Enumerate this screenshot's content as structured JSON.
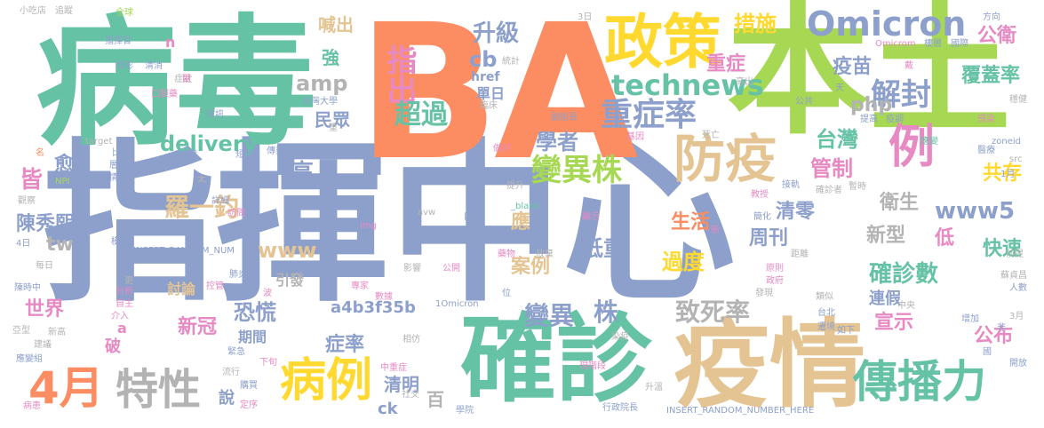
{
  "title": "",
  "palette": {
    "teal": "#66c2a5",
    "orange": "#fc8d62",
    "blue": "#8da0cb",
    "pink": "#e78ac3",
    "green": "#a6d854",
    "yellow": "#ffd92f",
    "tan": "#e5c494",
    "gray": "#b3b3b3"
  },
  "words": [
    {
      "text": "指揮中心",
      "color": "#8da0cb"
    },
    {
      "text": "BA",
      "color": "#fc8d62"
    },
    {
      "text": "病毒",
      "color": "#66c2a5"
    },
    {
      "text": "本土",
      "color": "#a6d854"
    },
    {
      "text": "確診",
      "color": "#66c2a5"
    },
    {
      "text": "疫情",
      "color": "#e5c494"
    },
    {
      "text": "政策",
      "color": "#ffd92f"
    },
    {
      "text": "Omicron",
      "color": "#8da0cb"
    },
    {
      "text": "防疫",
      "color": "#e5c494"
    },
    {
      "text": "傳播力",
      "color": "#66c2a5"
    },
    {
      "text": "病例",
      "color": "#ffd92f"
    },
    {
      "text": "特性",
      "color": "#b3b3b3"
    },
    {
      "text": "4月",
      "color": "#fc8d62"
    },
    {
      "text": "例",
      "color": "#e78ac3"
    },
    {
      "text": "technews",
      "color": "#66c2a5"
    },
    {
      "text": "重症率",
      "color": "#8da0cb"
    },
    {
      "text": "變異株",
      "color": "#a6d854"
    },
    {
      "text": "解封",
      "color": "#8da0cb"
    },
    {
      "text": "指出",
      "color": "#e78ac3"
    },
    {
      "text": "升級",
      "color": "#8da0cb"
    },
    {
      "text": "超過",
      "color": "#66c2a5"
    },
    {
      "text": "cb",
      "color": "#8da0cb"
    },
    {
      "text": "href",
      "color": "#8da0cb"
    },
    {
      "text": "單日",
      "color": "#8da0cb"
    },
    {
      "text": "措施",
      "color": "#ffd92f"
    },
    {
      "text": "重症",
      "color": "#e78ac3"
    },
    {
      "text": "疫苗",
      "color": "#8da0cb"
    },
    {
      "text": "公衛",
      "color": "#e78ac3"
    },
    {
      "text": "覆蓋率",
      "color": "#66c2a5"
    },
    {
      "text": "php",
      "color": "#b3b3b3"
    },
    {
      "text": "台灣",
      "color": "#66c2a5"
    },
    {
      "text": "管制",
      "color": "#e78ac3"
    },
    {
      "text": "共存",
      "color": "#ffd92f"
    },
    {
      "text": "www5",
      "color": "#8da0cb"
    },
    {
      "text": "衛生",
      "color": "#b3b3b3"
    },
    {
      "text": "新型",
      "color": "#b3b3b3"
    },
    {
      "text": "低",
      "color": "#e78ac3"
    },
    {
      "text": "快速",
      "color": "#66c2a5"
    },
    {
      "text": "確診數",
      "color": "#66c2a5"
    },
    {
      "text": "連假",
      "color": "#8da0cb"
    },
    {
      "text": "宣示",
      "color": "#e78ac3"
    },
    {
      "text": "公布",
      "color": "#e78ac3"
    },
    {
      "text": "喊出",
      "color": "#e5c494"
    },
    {
      "text": "amp",
      "color": "#b3b3b3"
    },
    {
      "text": "強",
      "color": "#66c2a5"
    },
    {
      "text": "民眾",
      "color": "#8da0cb"
    },
    {
      "text": "delivery",
      "color": "#66c2a5"
    },
    {
      "text": "學者",
      "color": "#8da0cb"
    },
    {
      "text": "高",
      "color": "#8da0cb"
    },
    {
      "text": "羅一鈞",
      "color": "#e5c494"
    },
    {
      "text": "皆",
      "color": "#e78ac3"
    },
    {
      "text": "愈",
      "color": "#8da0cb"
    },
    {
      "text": "陳秀熙",
      "color": "#8da0cb"
    },
    {
      "text": "tw",
      "color": "#b3b3b3"
    },
    {
      "text": "www",
      "color": "#e5c494"
    },
    {
      "text": "應",
      "color": "#e5c494"
    },
    {
      "text": "案例",
      "color": "#e5c494"
    },
    {
      "text": "低重",
      "color": "#8da0cb"
    },
    {
      "text": "生活",
      "color": "#fc8d62"
    },
    {
      "text": "過度",
      "color": "#ffd92f"
    },
    {
      "text": "周刊",
      "color": "#8da0cb"
    },
    {
      "text": "清零",
      "color": "#8da0cb"
    },
    {
      "text": "恐慌",
      "color": "#8da0cb"
    },
    {
      "text": "引發",
      "color": "#b3b3b3"
    },
    {
      "text": "討論",
      "color": "#e5c494"
    },
    {
      "text": "期間",
      "color": "#8da0cb"
    },
    {
      "text": "世界",
      "color": "#e78ac3"
    },
    {
      "text": "新冠",
      "color": "#e78ac3"
    },
    {
      "text": "a4b3f35b",
      "color": "#8da0cb"
    },
    {
      "text": "變異",
      "color": "#8da0cb"
    },
    {
      "text": "株",
      "color": "#8da0cb"
    },
    {
      "text": "致死率",
      "color": "#b3b3b3"
    },
    {
      "text": "症率",
      "color": "#8da0cb"
    },
    {
      "text": "說",
      "color": "#8da0cb"
    },
    {
      "text": "清明",
      "color": "#8da0cb"
    },
    {
      "text": "百",
      "color": "#b3b3b3"
    },
    {
      "text": "ck",
      "color": "#8da0cb"
    },
    {
      "text": "破",
      "color": "#e78ac3"
    },
    {
      "text": "a",
      "color": "#e78ac3"
    },
    {
      "text": "n",
      "color": "#e78ac3"
    },
    {
      "text": "小吃店",
      "color": "#b3b3b3"
    },
    {
      "text": "追蹤",
      "color": "#b3b3b3"
    },
    {
      "text": "全球",
      "color": "#a6d854"
    },
    {
      "text": "指揮官",
      "color": "#8da0cb"
    },
    {
      "text": "情形",
      "color": "#8da0cb"
    },
    {
      "text": "清消",
      "color": "#8da0cb"
    },
    {
      "text": "症狀",
      "color": "#b3b3b3"
    },
    {
      "text": "口服藥",
      "color": "#e78ac3"
    },
    {
      "text": "資訊",
      "color": "#8da0cb"
    },
    {
      "text": "target",
      "color": "#b3b3b3"
    },
    {
      "text": "統計",
      "color": "#b3b3b3"
    },
    {
      "text": "台灣大學",
      "color": "#8da0cb"
    },
    {
      "text": "臨床",
      "color": "#b3b3b3"
    },
    {
      "text": "副組長",
      "color": "#8da0cb"
    },
    {
      "text": "基因",
      "color": "#e78ac3"
    },
    {
      "text": "3日",
      "color": "#b3b3b3"
    },
    {
      "text": "Omicrom",
      "color": "#e78ac3"
    },
    {
      "text": "國際",
      "color": "#8da0cb"
    },
    {
      "text": "方向",
      "color": "#8da0cb"
    },
    {
      "text": "天",
      "color": "#8da0cb"
    },
    {
      "text": "公共",
      "color": "#8da0cb"
    },
    {
      "text": "提高",
      "color": "#8da0cb"
    },
    {
      "text": "疫調",
      "color": "#8da0cb"
    },
    {
      "text": "感染",
      "color": "#e78ac3"
    },
    {
      "text": "穩健",
      "color": "#b3b3b3"
    },
    {
      "text": "高出",
      "color": "#b3b3b3"
    },
    {
      "text": "戴",
      "color": "#e78ac3"
    },
    {
      "text": "應變",
      "color": "#66c2a5"
    },
    {
      "text": "醫療",
      "color": "#8da0cb"
    },
    {
      "text": "zoneid",
      "color": "#8da0cb"
    },
    {
      "text": "src",
      "color": "#b3b3b3"
    },
    {
      "text": "死亡",
      "color": "#b3b3b3"
    },
    {
      "text": "做好",
      "color": "#e78ac3"
    },
    {
      "text": "比率",
      "color": "#8da0cb"
    },
    {
      "text": "層級",
      "color": "#8da0cb"
    },
    {
      "text": "情況",
      "color": "#8da0cb"
    },
    {
      "text": "組織",
      "color": "#8da0cb"
    },
    {
      "text": "短短",
      "color": "#8da0cb"
    },
    {
      "text": "傳染力",
      "color": "#8da0cb"
    },
    {
      "text": "NPI",
      "color": "#a6d854"
    },
    {
      "text": "觀察",
      "color": "#b3b3b3"
    },
    {
      "text": "詳細",
      "color": "#8da0cb"
    },
    {
      "text": "訪問",
      "color": "#e78ac3"
    },
    {
      "text": "基於",
      "color": "#8da0cb"
    },
    {
      "text": "提升",
      "color": "#b3b3b3"
    },
    {
      "text": "_blank",
      "color": "#66c2a5"
    },
    {
      "text": "接軌",
      "color": "#8da0cb"
    },
    {
      "text": "確診者",
      "color": "#b3b3b3"
    },
    {
      "text": "暫時",
      "color": "#b3b3b3"
    },
    {
      "text": "教授",
      "color": "#e78ac3"
    },
    {
      "text": "1月",
      "color": "#8da0cb"
    },
    {
      "text": "名",
      "color": "#fc8d62"
    },
    {
      "text": "4日",
      "color": "#8da0cb"
    },
    {
      "text": "每日",
      "color": "#b3b3b3"
    },
    {
      "text": "模式",
      "color": "#8da0cb"
    },
    {
      "text": "INSERT_RANDOM_NUM",
      "color": "#8da0cb"
    },
    {
      "text": "img",
      "color": "#e78ac3"
    },
    {
      "text": "avw",
      "color": "#b3b3b3"
    },
    {
      "text": "口罩",
      "color": "#8da0cb"
    },
    {
      "text": "顯示",
      "color": "#e78ac3"
    },
    {
      "text": "簡化",
      "color": "#8da0cb"
    },
    {
      "text": "距離",
      "color": "#b3b3b3"
    },
    {
      "text": "前提",
      "color": "#b3b3b3"
    },
    {
      "text": "更",
      "color": "#b3b3b3"
    },
    {
      "text": "分析",
      "color": "#e78ac3"
    },
    {
      "text": "肺炎",
      "color": "#8da0cb"
    },
    {
      "text": "影響",
      "color": "#b3b3b3"
    },
    {
      "text": "公開",
      "color": "#e78ac3"
    },
    {
      "text": "藥物",
      "color": "#e78ac3"
    },
    {
      "text": "放棄",
      "color": "#b3b3b3"
    },
    {
      "text": "原則",
      "color": "#e78ac3"
    },
    {
      "text": "政府",
      "color": "#e78ac3"
    },
    {
      "text": "蘇貞昌",
      "color": "#b3b3b3"
    },
    {
      "text": "人數",
      "color": "#8da0cb"
    },
    {
      "text": "陳時中",
      "color": "#8da0cb"
    },
    {
      "text": "自主",
      "color": "#e78ac3"
    },
    {
      "text": "介入",
      "color": "#e78ac3"
    },
    {
      "text": "控管",
      "color": "#e78ac3"
    },
    {
      "text": "波",
      "color": "#e78ac3"
    },
    {
      "text": "專家",
      "color": "#e78ac3"
    },
    {
      "text": "數據",
      "color": "#e78ac3"
    },
    {
      "text": "1Omicron",
      "color": "#8da0cb"
    },
    {
      "text": "位",
      "color": "#8da0cb"
    },
    {
      "text": "發現",
      "color": "#b3b3b3"
    },
    {
      "text": "類似",
      "color": "#b3b3b3"
    },
    {
      "text": "中央",
      "color": "#b3b3b3"
    },
    {
      "text": "台北",
      "color": "#8da0cb"
    },
    {
      "text": "亞型",
      "color": "#b3b3b3"
    },
    {
      "text": "新高",
      "color": "#b3b3b3"
    },
    {
      "text": "3月",
      "color": "#b3b3b3"
    },
    {
      "text": "增加",
      "color": "#8da0cb"
    },
    {
      "text": "遷境",
      "color": "#8da0cb"
    },
    {
      "text": "如下",
      "color": "#8da0cb"
    },
    {
      "text": "建議",
      "color": "#b3b3b3"
    },
    {
      "text": "應變組",
      "color": "#8da0cb"
    },
    {
      "text": "緊急",
      "color": "#8da0cb"
    },
    {
      "text": "相仿",
      "color": "#b3b3b3"
    },
    {
      "text": "染疫",
      "color": "#b3b3b3"
    },
    {
      "text": "國",
      "color": "#8da0cb"
    },
    {
      "text": "開放",
      "color": "#8da0cb"
    },
    {
      "text": "流行",
      "color": "#b3b3b3"
    },
    {
      "text": "下旬",
      "color": "#e78ac3"
    },
    {
      "text": "中重症",
      "color": "#e78ac3"
    },
    {
      "text": "現階段",
      "color": "#e78ac3"
    },
    {
      "text": "購買",
      "color": "#8da0cb"
    },
    {
      "text": "社交",
      "color": "#b3b3b3"
    },
    {
      "text": "升溫",
      "color": "#b3b3b3"
    },
    {
      "text": "病患",
      "color": "#e78ac3"
    },
    {
      "text": "定序",
      "color": "#e78ac3"
    },
    {
      "text": "學院",
      "color": "#8da0cb"
    },
    {
      "text": "行政院長",
      "color": "#8da0cb"
    },
    {
      "text": "INSERT_RANDOM_NUMBER_HERE",
      "color": "#8da0cb"
    },
    {
      "text": "非",
      "color": "#8da0cb"
    },
    {
      "text": "樓層",
      "color": "#8da0cb"
    },
    {
      "text": "閩",
      "color": "#e78ac3"
    },
    {
      "text": "重",
      "color": "#b3b3b3"
    },
    {
      "text": "太",
      "color": "#b3b3b3"
    },
    {
      "text": "新",
      "color": "#e78ac3"
    }
  ]
}
